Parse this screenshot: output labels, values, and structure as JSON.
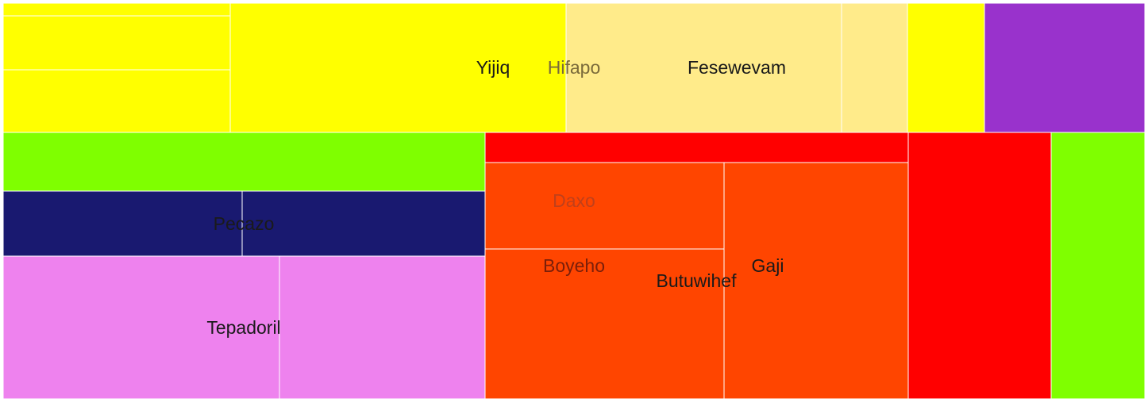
{
  "chart_data": {
    "type": "treemap",
    "colors": {
      "yellow": "#ffff00",
      "light_yellow": "#ffeb8a",
      "purple": "#9932cc",
      "lime": "#7fff00",
      "navy": "#191970",
      "violet": "#ee82ee",
      "red": "#ff0000",
      "orange_red": "#ff4500",
      "cell_border": "#ffffff"
    },
    "labels": [
      {
        "text": "Yijiq",
        "color": "#1a1a1a"
      },
      {
        "text": "Hifapo",
        "color": "#7a6a3a"
      },
      {
        "text": "Fesewevam",
        "color": "#1a1a1a"
      },
      {
        "text": "Pecazo",
        "color": "#1a1a1a"
      },
      {
        "text": "Tepadoril",
        "color": "#1a1a1a"
      },
      {
        "text": "Daxo",
        "color": "#c0401a"
      },
      {
        "text": "Boyeho",
        "color": "#7a1f0a"
      },
      {
        "text": "Butuwihef",
        "color": "#1a1a1a"
      },
      {
        "text": "Gaji",
        "color": "#1a1a1a"
      }
    ]
  }
}
